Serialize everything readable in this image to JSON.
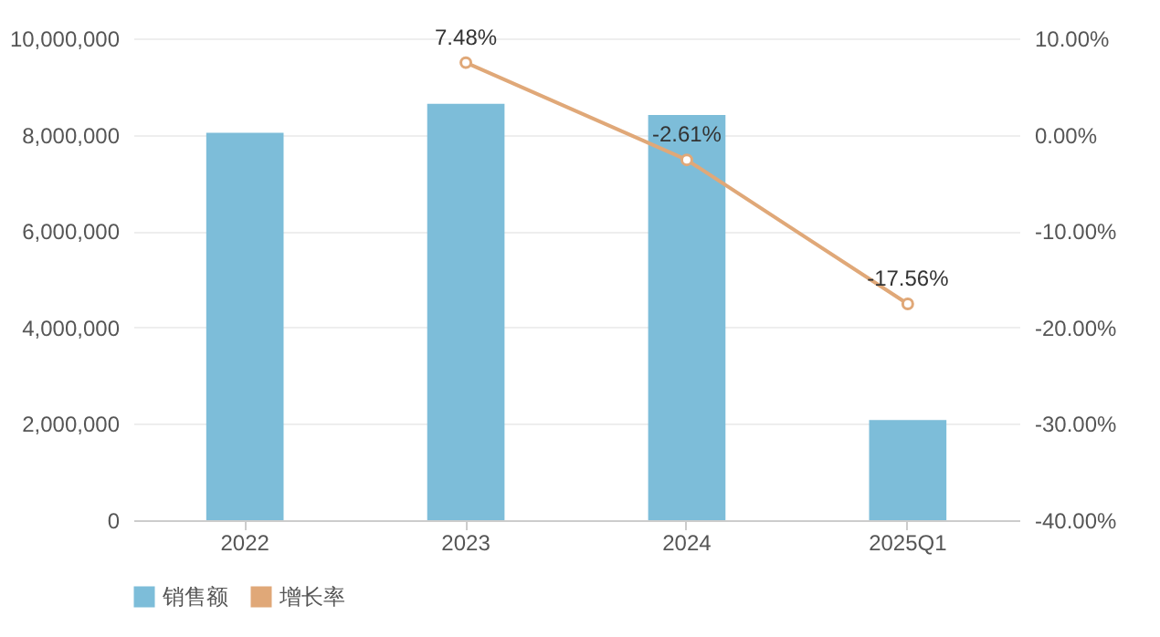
{
  "chart_data": {
    "type": "bar",
    "categories": [
      "2022",
      "2023",
      "2024",
      "2025Q1"
    ],
    "series": [
      {
        "name": "销售额",
        "color": "#7dbdd9",
        "values": [
          8040000,
          8640000,
          8410000,
          2080000
        ]
      },
      {
        "name": "增长率",
        "type": "line",
        "axis": "y2",
        "color": "#e0a878",
        "values": [
          null,
          7.48,
          -2.61,
          -17.56
        ],
        "value_labels": [
          null,
          "7.48%",
          "-2.61%",
          "-17.56%"
        ]
      }
    ],
    "ylim": [
      0,
      10000000
    ],
    "yticks": [
      {
        "value": 0,
        "label": "0"
      },
      {
        "value": 2000000,
        "label": "2,000,000"
      },
      {
        "value": 4000000,
        "label": "4,000,000"
      },
      {
        "value": 6000000,
        "label": "6,000,000"
      },
      {
        "value": 8000000,
        "label": "8,000,000"
      },
      {
        "value": 10000000,
        "label": "10,000,000"
      }
    ],
    "y2lim": [
      -40,
      10
    ],
    "y2ticks": [
      {
        "value": -40,
        "label": "-40.00%"
      },
      {
        "value": -30,
        "label": "-30.00%"
      },
      {
        "value": -20,
        "label": "-20.00%"
      },
      {
        "value": -10,
        "label": "-10.00%"
      },
      {
        "value": 0,
        "label": "0.00%"
      },
      {
        "value": 10,
        "label": "10.00%"
      }
    ],
    "grid": "y",
    "legend": "bottom",
    "marker": "circle",
    "line_style": "solid"
  }
}
